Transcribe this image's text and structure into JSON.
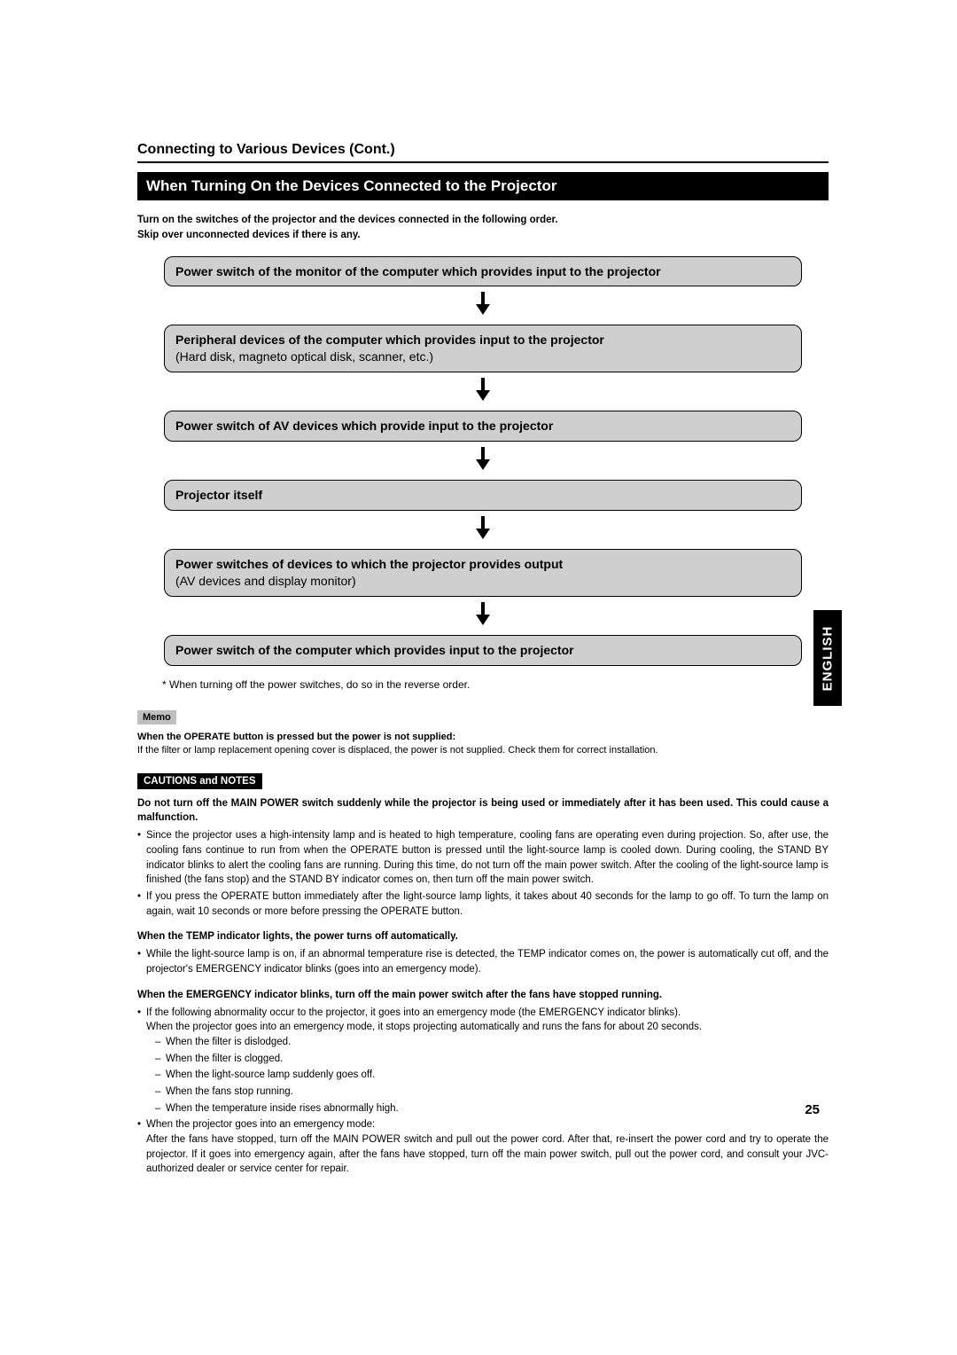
{
  "colors": {
    "step_bg": "#cfcfcf",
    "memo_bg": "#bfbfbf",
    "black": "#000000",
    "white": "#ffffff"
  },
  "font_base_pt": 11.5,
  "doc_title": "Connecting to Various Devices (Cont.)",
  "section_header": "When Turning On the Devices Connected to the Projector",
  "intro_line1": "Turn on the switches of the projector and the devices connected in the following order.",
  "intro_line2": "Skip over unconnected devices if there is any.",
  "steps": [
    {
      "main": "Power switch of the monitor of the computer which provides input to the projector",
      "sub": ""
    },
    {
      "main": "Peripheral devices of the computer which provides input to the projector",
      "sub": "(Hard disk, magneto optical disk, scanner, etc.)"
    },
    {
      "main": "Power switch of AV devices which provide input to the projector",
      "sub": ""
    },
    {
      "main": "Projector itself",
      "sub": ""
    },
    {
      "main": "Power switches of devices to which the projector provides output",
      "sub": "(AV devices and display monitor)"
    },
    {
      "main": "Power switch of the computer which provides input to the projector",
      "sub": ""
    }
  ],
  "footnote": "* When turning off the power switches, do so in the reverse order.",
  "memo_label": "Memo",
  "memo_heading": "When the OPERATE button is pressed but the power is not supplied:",
  "memo_body": "If the filter or lamp replacement opening cover is displaced, the power is not supplied. Check them for correct installation.",
  "cautions_label": "CAUTIONS and NOTES",
  "caution1_bold": "Do not turn off the MAIN POWER switch suddenly while the projector is being used or immediately after it has been used. This could cause a malfunction.",
  "caution1_bullets": [
    "Since the projector uses a high-intensity lamp and is heated to high temperature, cooling fans are operating even during projection. So, after use, the cooling fans continue to run from when the OPERATE button is pressed until the light-source lamp is cooled down. During cooling, the STAND BY indicator blinks to alert the cooling fans are running. During this time, do not turn off the main power switch. After the cooling of the light-source lamp is finished (the fans stop) and the STAND BY indicator comes on, then turn off the main power switch.",
    "If you press the OPERATE button immediately after the light-source lamp lights, it takes about 40 seconds for the lamp to go off. To turn the lamp on again, wait 10 seconds or more before pressing the OPERATE button."
  ],
  "caution2_heading": "When the TEMP indicator lights, the power turns off automatically.",
  "caution2_bullets": [
    "While the light-source lamp is on, if an abnormal temperature rise is detected, the TEMP indicator comes on, the power is automatically cut off, and the projector's EMERGENCY indicator blinks (goes into an emergency mode)."
  ],
  "caution3_heading": "When the EMERGENCY indicator blinks, turn off the main power switch after the fans have stopped running.",
  "caution3_bullet1": "If the following abnormality occur to the projector, it goes into an emergency mode (the EMERGENCY indicator blinks).",
  "caution3_para": "When the projector goes into an emergency mode, it stops projecting automatically and runs the fans for about 20 seconds.",
  "caution3_sublist": [
    "When the filter is dislodged.",
    "When the filter is clogged.",
    "When the light-source lamp suddenly goes off.",
    "When the fans stop running.",
    "When the temperature inside rises abnormally high."
  ],
  "caution3_bullet2": "When the projector goes into an emergency mode:",
  "caution3_para2": "After the fans have stopped, turn off the MAIN POWER switch and pull out the power cord. After that, re-insert the power cord and try to operate the projector. If it goes into emergency again, after the fans have stopped, turn off the main power switch, pull out the power cord, and consult your JVC-authorized dealer or service center for repair.",
  "page_number": "25",
  "language_tab": "ENGLISH"
}
